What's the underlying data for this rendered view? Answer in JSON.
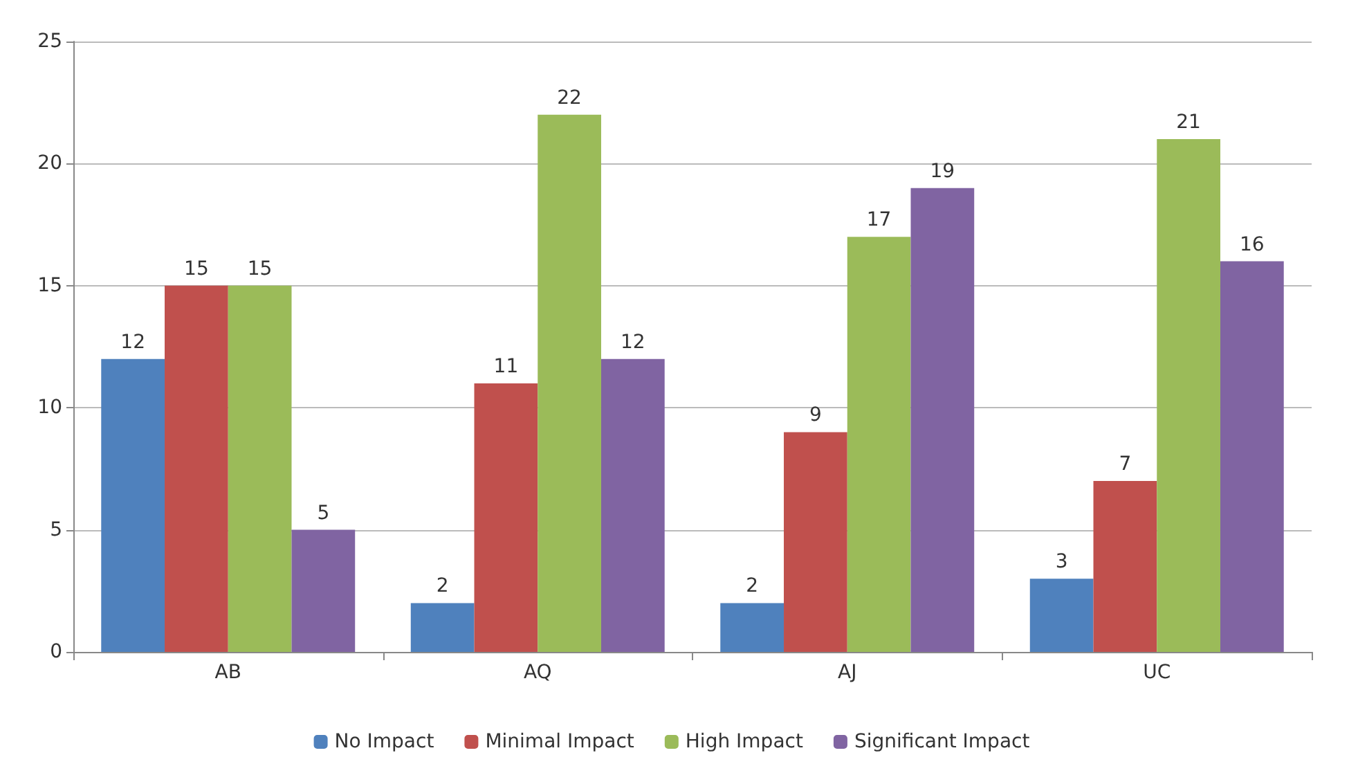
{
  "chart_data": {
    "type": "bar",
    "categories": [
      "AB",
      "AQ",
      "AJ",
      "UC"
    ],
    "series": [
      {
        "name": "No Impact",
        "color": "#4f81bd",
        "values": [
          12,
          2,
          2,
          3
        ]
      },
      {
        "name": "Minimal Impact",
        "color": "#c0504d",
        "values": [
          15,
          11,
          9,
          7
        ]
      },
      {
        "name": "High Impact",
        "color": "#9bbb59",
        "values": [
          15,
          22,
          17,
          21
        ]
      },
      {
        "name": "Significant Impact",
        "color": "#8064a2",
        "values": [
          5,
          12,
          19,
          16
        ]
      }
    ],
    "ylim": [
      0,
      25
    ],
    "yticks": [
      0,
      5,
      10,
      15,
      20,
      25
    ],
    "grid": "y",
    "legend": "bottom",
    "data_labels": true
  }
}
